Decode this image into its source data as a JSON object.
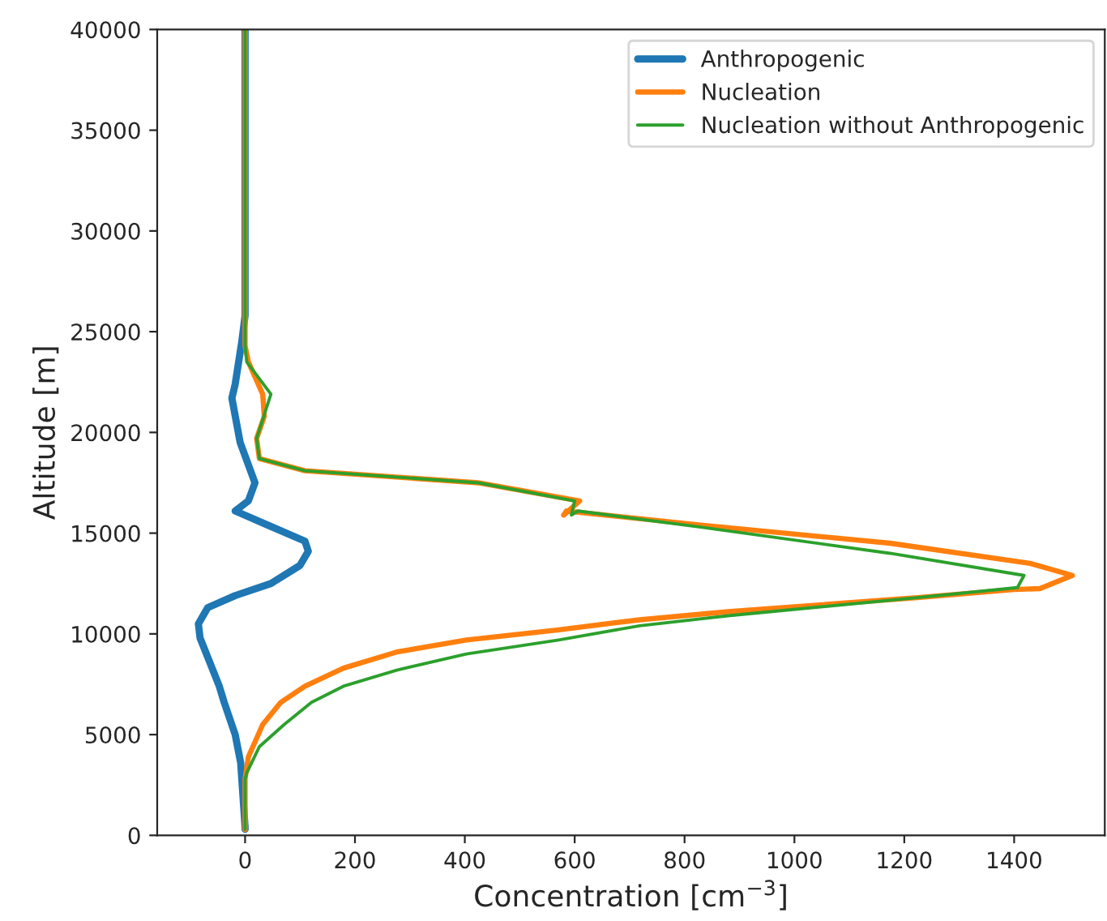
{
  "chart_data": {
    "type": "line",
    "xlabel": "Concentration [cm$^{−3}$]",
    "ylabel": "Altitude [m]",
    "xlim": [
      -160,
      1565
    ],
    "xticks": [
      0,
      200,
      400,
      600,
      800,
      1000,
      1200,
      1400
    ],
    "ylim": [
      0,
      40000
    ],
    "yticks": [
      0,
      5000,
      10000,
      15000,
      20000,
      25000,
      30000,
      35000,
      40000
    ],
    "legend": "top right",
    "grid": false,
    "series": [
      {
        "name": "Anthropogenic",
        "color": "#1f77b4",
        "x": [
          0,
          0,
          -8,
          -18,
          -38,
          -47,
          -82,
          -85,
          -68,
          -18,
          47,
          100,
          115,
          109,
          41,
          -18,
          6,
          18,
          -9,
          -24,
          -18,
          -6,
          0,
          0
        ],
        "values": [
          300,
          400,
          3600,
          5000,
          6600,
          7400,
          9800,
          10500,
          11300,
          11900,
          12500,
          13400,
          14100,
          14600,
          15400,
          16100,
          16600,
          17500,
          19500,
          21700,
          22400,
          24500,
          25800,
          40000
        ]
      },
      {
        "name": "Nucleation",
        "color": "#ff7f0e",
        "x": [
          0,
          0,
          6,
          32,
          65,
          109,
          179,
          276,
          403,
          571,
          718,
          879,
          1224,
          1400,
          1447,
          1506,
          1429,
          1174,
          829,
          585,
          580,
          609,
          424,
          109,
          26,
          21,
          35,
          32,
          6,
          0,
          0
        ],
        "values": [
          300,
          2800,
          3900,
          5500,
          6600,
          7400,
          8300,
          9100,
          9700,
          10200,
          10700,
          11100,
          11800,
          12200,
          12250,
          12900,
          13500,
          14500,
          15400,
          16100,
          15900,
          16600,
          17500,
          18100,
          18700,
          19700,
          20800,
          21900,
          23500,
          24300,
          40000
        ]
      },
      {
        "name": "Nucleation without Anthropogenic",
        "color": "#2ca02c",
        "x": [
          0,
          0,
          3,
          26,
          71,
          121,
          179,
          276,
          403,
          571,
          718,
          879,
          1224,
          1406,
          1418,
          1174,
          829,
          606,
          594,
          600,
          424,
          109,
          26,
          21,
          47,
          3,
          0,
          0
        ],
        "values": [
          300,
          2800,
          3100,
          4400,
          5500,
          6600,
          7400,
          8200,
          9000,
          9700,
          10400,
          10900,
          11800,
          12300,
          12900,
          14000,
          15300,
          16100,
          15900,
          16600,
          17500,
          18100,
          18700,
          19700,
          21900,
          23500,
          24300,
          40000
        ]
      }
    ]
  }
}
